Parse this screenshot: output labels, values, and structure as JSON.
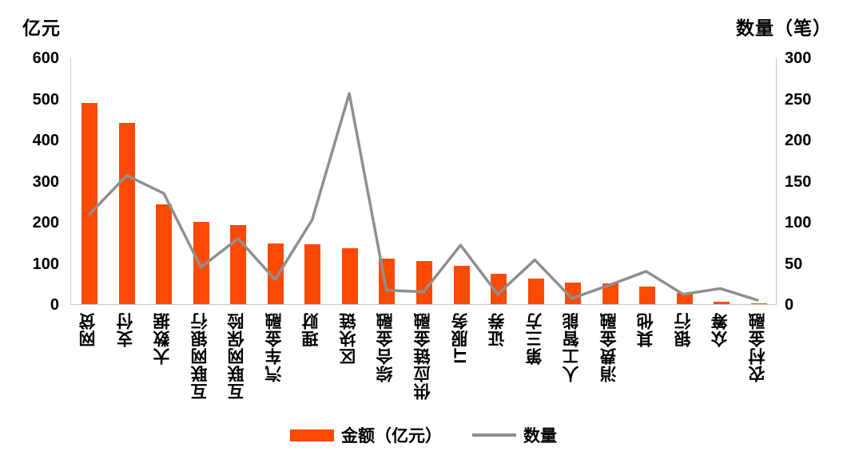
{
  "chart_data": {
    "type": "bar",
    "combo": "bar+line dual axis",
    "title": "",
    "categories": [
      "网贷",
      "支付",
      "大数据",
      "互联网银行",
      "互联网保险",
      "汽车金融",
      "理财",
      "区块链",
      "综合金融",
      "供应链金融",
      "IT服务",
      "证券",
      "第三方",
      "人工智能",
      "消费金融",
      "其他",
      "银行",
      "众筹",
      "农村金融"
    ],
    "series": [
      {
        "name": "金额（亿元）",
        "type": "bar",
        "axis": "left",
        "values": [
          490,
          441,
          243,
          201,
          193,
          148,
          146,
          135,
          110,
          104,
          93,
          73,
          62,
          52,
          50,
          42,
          27,
          5,
          2
        ]
      },
      {
        "name": "数量",
        "type": "line",
        "axis": "right",
        "values": [
          110,
          157,
          135,
          45,
          80,
          30,
          103,
          257,
          17,
          15,
          72,
          12,
          54,
          7,
          23,
          40,
          12,
          19,
          5
        ]
      }
    ],
    "left_axis": {
      "title": "亿元",
      "min": 0,
      "max": 600,
      "ticks": [
        0,
        100,
        200,
        300,
        400,
        500,
        600
      ]
    },
    "right_axis": {
      "title": "数量（笔）",
      "min": 0,
      "max": 300,
      "ticks": [
        0,
        50,
        100,
        150,
        200,
        250,
        300
      ]
    },
    "legend_position": "bottom",
    "grid": false
  },
  "colors": {
    "bar": "#fb4a04",
    "line": "#8f8f8f",
    "axis_line": "#c9c9c9",
    "text": "#000000",
    "background": "#ffffff"
  }
}
